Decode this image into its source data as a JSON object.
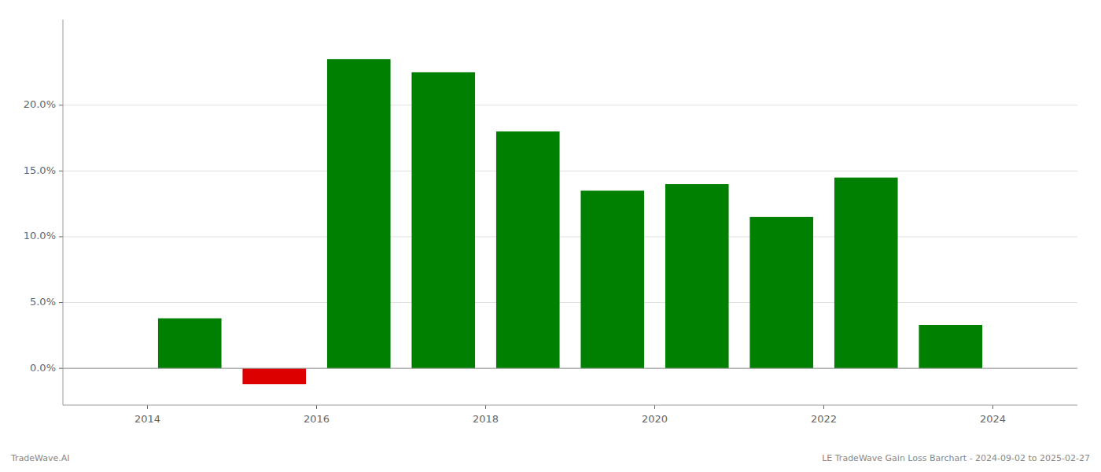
{
  "chart_data": {
    "type": "bar",
    "x": [
      2014.5,
      2015.5,
      2016.5,
      2017.5,
      2018.5,
      2019.5,
      2020.5,
      2021.5,
      2022.5,
      2023.5
    ],
    "values": [
      0.038,
      -0.012,
      0.235,
      0.225,
      0.18,
      0.135,
      0.14,
      0.115,
      0.145,
      0.033
    ],
    "colors": [
      "#008000",
      "#dd0000",
      "#008000",
      "#008000",
      "#008000",
      "#008000",
      "#008000",
      "#008000",
      "#008000",
      "#008000"
    ],
    "xlim": [
      2013.0,
      2025.0
    ],
    "xticks": [
      2014,
      2016,
      2018,
      2020,
      2022,
      2024
    ],
    "ylim": [
      -0.028,
      0.265
    ],
    "yticks": [
      {
        "value": 0.0,
        "label": "0.0%"
      },
      {
        "value": 0.05,
        "label": "5.0%"
      },
      {
        "value": 0.1,
        "label": "10.0%"
      },
      {
        "value": 0.15,
        "label": "15.0%"
      },
      {
        "value": 0.2,
        "label": "20.0%"
      }
    ],
    "grid": true,
    "annotations": [
      "TradeWave.AI",
      "LE TradeWave Gain Loss Barchart - 2024-09-02 to 2025-02-27"
    ]
  }
}
